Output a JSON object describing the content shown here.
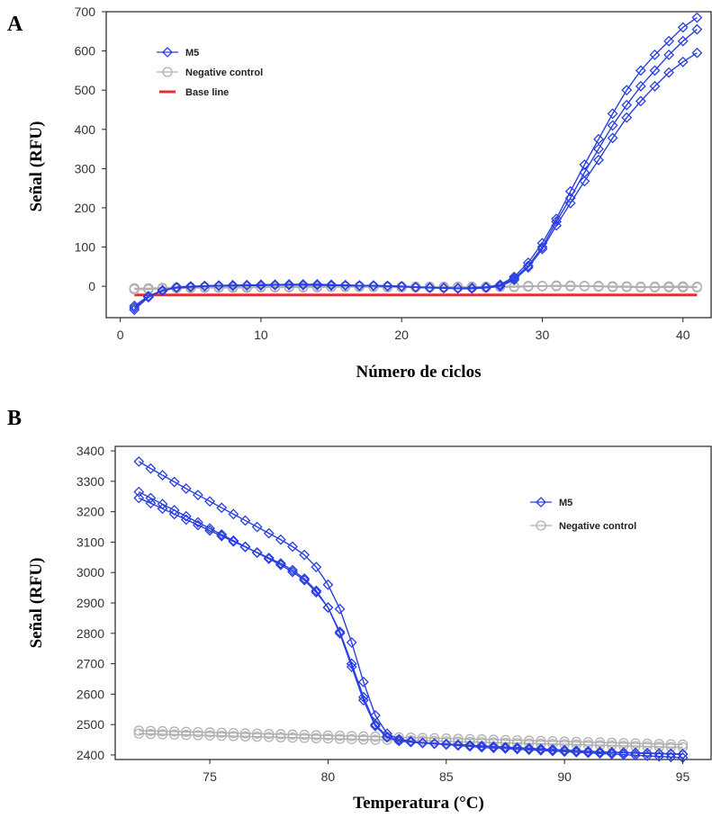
{
  "chart_data": [
    {
      "panel": "A",
      "type": "line",
      "xlabel": "Número de ciclos",
      "ylabel": "Señal (RFU)",
      "xlim": [
        -1,
        42
      ],
      "ylim": [
        -80,
        700
      ],
      "xticks": [
        0,
        10,
        20,
        30,
        40
      ],
      "yticks": [
        0,
        100,
        200,
        300,
        400,
        500,
        600,
        700
      ],
      "grid": false,
      "legend_position": "top-left",
      "x": [
        1,
        2,
        3,
        4,
        5,
        6,
        7,
        8,
        9,
        10,
        11,
        12,
        13,
        14,
        15,
        16,
        17,
        18,
        19,
        20,
        21,
        22,
        23,
        24,
        25,
        26,
        27,
        28,
        29,
        30,
        31,
        32,
        33,
        34,
        35,
        36,
        37,
        38,
        39,
        40,
        41
      ],
      "series": [
        {
          "name": "M5",
          "group": "M5",
          "color": "#2a3fe0",
          "marker": "diamond",
          "values": [
            -60,
            -28,
            -10,
            -2,
            0,
            1,
            2,
            2,
            3,
            3,
            4,
            4,
            4,
            4,
            3,
            3,
            2,
            2,
            1,
            0,
            -2,
            -4,
            -4,
            -5,
            -5,
            -3,
            2,
            20,
            52,
            100,
            165,
            225,
            290,
            350,
            410,
            462,
            510,
            550,
            590,
            625,
            655
          ]
        },
        {
          "name": "M5",
          "group": "M5",
          "color": "#2a3fe0",
          "marker": "diamond",
          "values": [
            -50,
            -25,
            -10,
            -3,
            -1,
            1,
            2,
            3,
            3,
            4,
            4,
            5,
            5,
            5,
            4,
            3,
            2,
            2,
            1,
            0,
            -2,
            -3,
            -4,
            -5,
            -4,
            -2,
            4,
            24,
            60,
            110,
            172,
            242,
            310,
            375,
            440,
            500,
            550,
            590,
            625,
            660,
            685
          ]
        },
        {
          "name": "M5",
          "group": "M5",
          "color": "#2a3fe0",
          "marker": "diamond",
          "values": [
            -55,
            -27,
            -12,
            -4,
            -2,
            0,
            1,
            1,
            2,
            2,
            3,
            3,
            3,
            3,
            2,
            2,
            1,
            1,
            0,
            -1,
            -3,
            -4,
            -5,
            -6,
            -6,
            -4,
            0,
            16,
            48,
            95,
            155,
            212,
            268,
            322,
            378,
            430,
            472,
            510,
            545,
            572,
            595
          ]
        },
        {
          "name": "Negative control",
          "group": "Negative control",
          "color": "#b0b0b0",
          "marker": "circle",
          "values": [
            -8,
            -8,
            -6,
            -5,
            -5,
            -4,
            -4,
            -4,
            -4,
            -3,
            -3,
            -3,
            -3,
            -3,
            -2,
            -2,
            -2,
            -2,
            -3,
            -3,
            -3,
            -3,
            -3,
            -3,
            -3,
            -3,
            -2,
            -2,
            -1,
            0,
            0,
            0,
            0,
            -1,
            -2,
            -2,
            -3,
            -3,
            -3,
            -3,
            -3
          ]
        },
        {
          "name": "Negative control",
          "group": "Negative control",
          "color": "#b0b0b0",
          "marker": "circle",
          "values": [
            -5,
            -5,
            -4,
            -3,
            -3,
            -2,
            -2,
            -2,
            -1,
            -1,
            -1,
            -1,
            -1,
            0,
            0,
            0,
            0,
            -1,
            -1,
            -1,
            -1,
            -1,
            -1,
            -1,
            -1,
            -1,
            0,
            0,
            1,
            1,
            2,
            2,
            1,
            1,
            0,
            0,
            -1,
            -1,
            0,
            0,
            -1
          ]
        }
      ],
      "baseline": {
        "name": "Base line",
        "color": "#e53030",
        "y": -22,
        "x_range": [
          1,
          41
        ]
      },
      "legend": [
        {
          "label": "M5",
          "marker": "diamond",
          "color": "#2a3fe0"
        },
        {
          "label": "Negative control",
          "marker": "circle",
          "color": "#b0b0b0"
        },
        {
          "label": "Base line",
          "marker": "line",
          "color": "#e53030"
        }
      ]
    },
    {
      "panel": "B",
      "type": "line",
      "xlabel": "Temperatura (°C)",
      "ylabel": "Señal (RFU)",
      "xlim": [
        71,
        96.2
      ],
      "ylim": [
        2385,
        3415
      ],
      "xticks": [
        75,
        80,
        85,
        90,
        95
      ],
      "yticks": [
        2400,
        2500,
        2600,
        2700,
        2800,
        2900,
        3000,
        3100,
        3200,
        3300,
        3400
      ],
      "grid": false,
      "legend_position": "right",
      "x": [
        72,
        72.5,
        73,
        73.5,
        74,
        74.5,
        75,
        75.5,
        76,
        76.5,
        77,
        77.5,
        78,
        78.5,
        79,
        79.5,
        80,
        80.5,
        81,
        81.5,
        82,
        82.5,
        83,
        83.5,
        84,
        84.5,
        85,
        85.5,
        86,
        86.5,
        87,
        87.5,
        88,
        88.5,
        89,
        89.5,
        90,
        90.5,
        91,
        91.5,
        92,
        92.5,
        93,
        93.5,
        94,
        94.5,
        95
      ],
      "series": [
        {
          "name": "M5",
          "group": "M5",
          "color": "#2a3fe0",
          "marker": "diamond",
          "values": [
            3365,
            3342,
            3320,
            3298,
            3276,
            3255,
            3234,
            3213,
            3192,
            3171,
            3150,
            3129,
            3108,
            3085,
            3058,
            3018,
            2960,
            2880,
            2770,
            2640,
            2530,
            2470,
            2452,
            2445,
            2440,
            2437,
            2434,
            2431,
            2428,
            2425,
            2423,
            2421,
            2419,
            2417,
            2415,
            2413,
            2411,
            2409,
            2407,
            2405,
            2403,
            2401,
            2399,
            2397,
            2395,
            2393,
            2391
          ]
        },
        {
          "name": "M5",
          "group": "M5",
          "color": "#2a3fe0",
          "marker": "diamond",
          "values": [
            3265,
            3245,
            3225,
            3205,
            3185,
            3165,
            3145,
            3125,
            3105,
            3085,
            3065,
            3045,
            3025,
            3002,
            2975,
            2935,
            2885,
            2805,
            2700,
            2590,
            2500,
            2460,
            2447,
            2443,
            2440,
            2438,
            2436,
            2434,
            2432,
            2430,
            2428,
            2426,
            2424,
            2422,
            2420,
            2418,
            2416,
            2414,
            2412,
            2410,
            2409,
            2408,
            2407,
            2406,
            2405,
            2404,
            2403
          ]
        },
        {
          "name": "M5",
          "group": "M5",
          "color": "#2a3fe0",
          "marker": "diamond",
          "values": [
            3245,
            3228,
            3210,
            3192,
            3174,
            3156,
            3138,
            3120,
            3102,
            3084,
            3066,
            3048,
            3030,
            3008,
            2980,
            2940,
            2885,
            2800,
            2690,
            2580,
            2495,
            2458,
            2446,
            2442,
            2439,
            2437,
            2435,
            2433,
            2431,
            2429,
            2427,
            2425,
            2423,
            2421,
            2419,
            2417,
            2415,
            2413,
            2411,
            2409,
            2408,
            2407,
            2406,
            2405,
            2404,
            2403,
            2402
          ]
        },
        {
          "name": "Negative control",
          "group": "Negative control",
          "color": "#b0b0b0",
          "marker": "circle",
          "values": [
            2480,
            2479,
            2478,
            2477,
            2476,
            2475,
            2474,
            2473,
            2472,
            2471,
            2470,
            2469,
            2468,
            2467,
            2466,
            2465,
            2464,
            2463,
            2462,
            2461,
            2460,
            2459,
            2458,
            2457,
            2456,
            2455,
            2454,
            2453,
            2452,
            2451,
            2450,
            2449,
            2448,
            2447,
            2446,
            2445,
            2444,
            2443,
            2442,
            2441,
            2440,
            2439,
            2438,
            2437,
            2436,
            2435,
            2434
          ]
        },
        {
          "name": "Negative control",
          "group": "Negative control",
          "color": "#b0b0b0",
          "marker": "circle",
          "values": [
            2470,
            2469,
            2468,
            2467,
            2466,
            2465,
            2464,
            2463,
            2462,
            2461,
            2460,
            2459,
            2458,
            2457,
            2456,
            2455,
            2454,
            2453,
            2452,
            2451,
            2450,
            2450,
            2449,
            2448,
            2447,
            2446,
            2445,
            2444,
            2443,
            2442,
            2441,
            2440,
            2439,
            2438,
            2437,
            2436,
            2435,
            2434,
            2433,
            2432,
            2431,
            2430,
            2429,
            2428,
            2427,
            2426,
            2425
          ]
        }
      ],
      "legend": [
        {
          "label": "M5",
          "marker": "diamond",
          "color": "#2a3fe0"
        },
        {
          "label": "Negative control",
          "marker": "circle",
          "color": "#b0b0b0"
        }
      ]
    }
  ]
}
